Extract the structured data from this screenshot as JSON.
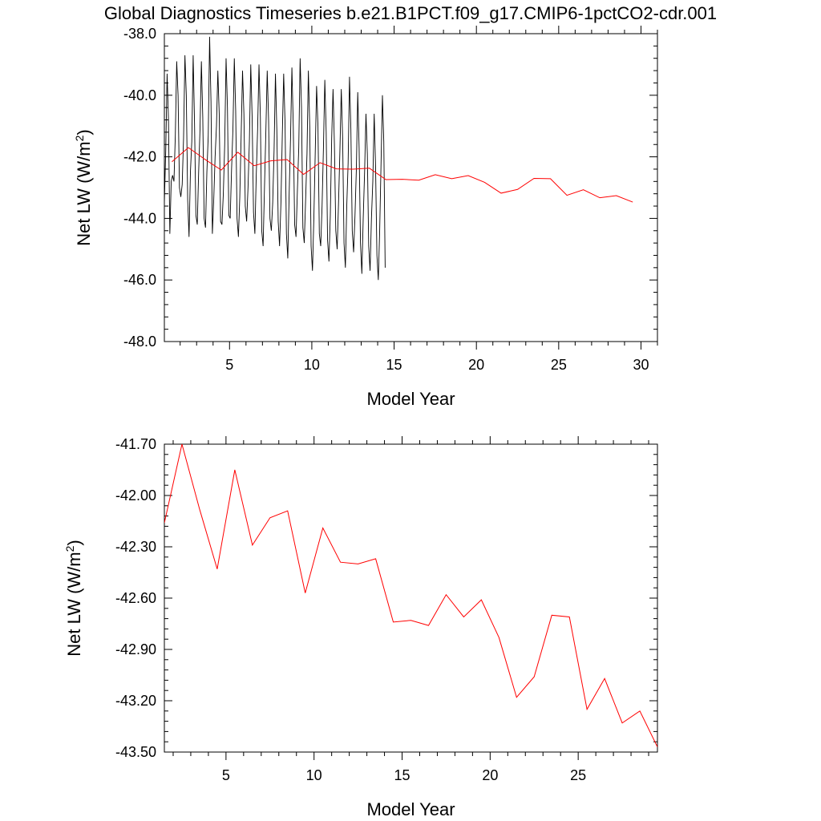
{
  "title": "Global Diagnostics Timeseries b.e21.B1PCT.f09_g17.CMIP6-1pctCO2-cdr.001",
  "colors": {
    "monthly": "#000000",
    "annual": "#ff0000",
    "axes": "#000000",
    "background": "#ffffff"
  },
  "chart_data": [
    {
      "type": "line",
      "xlabel": "Model Year",
      "ylabel": "Net LW (W/m",
      "ylabel_sup": "2",
      "ylabel_close": ")",
      "xlim": [
        1.04,
        31.0
      ],
      "ylim": [
        -48.0,
        -38.0
      ],
      "xticks": [
        "5",
        "10",
        "15",
        "20",
        "25",
        "30"
      ],
      "xtick_values": [
        5,
        10,
        15,
        20,
        25,
        30
      ],
      "yticks": [
        "-48.0",
        "-46.0",
        "-44.0",
        "-42.0",
        "-40.0",
        "-38.0"
      ],
      "ytick_values": [
        -48,
        -46,
        -44,
        -42,
        -40,
        -38
      ],
      "series": [
        {
          "name": "",
          "role": "monthly",
          "color": "#000000",
          "x_start": 1.04,
          "x_step": 0.08333,
          "values": [
            -43.5,
            -41.8,
            -39.3,
            -40.8,
            -44.5,
            -42.8,
            -42.6,
            -42.8,
            -41.3,
            -38.9,
            -40.0,
            -43.0,
            -43.3,
            -42.9,
            -41.4,
            -38.7,
            -40.0,
            -43.4,
            -44.6,
            -42.5,
            -41.5,
            -38.7,
            -40.9,
            -43.9,
            -44.2,
            -42.5,
            -41.1,
            -38.9,
            -40.7,
            -44.0,
            -44.3,
            -42.5,
            -41.3,
            -38.1,
            -40.2,
            -44.5,
            -43.4,
            -42.0,
            -41.0,
            -39.2,
            -40.6,
            -44.1,
            -44.2,
            -43.2,
            -41.6,
            -38.8,
            -40.4,
            -43.9,
            -44.0,
            -42.4,
            -41.1,
            -38.8,
            -40.5,
            -44.0,
            -44.6,
            -43.3,
            -41.3,
            -39.2,
            -40.6,
            -43.6,
            -44.1,
            -43.0,
            -41.5,
            -39.0,
            -40.7,
            -43.8,
            -44.5,
            -42.6,
            -41.1,
            -39.0,
            -40.7,
            -44.4,
            -44.9,
            -43.0,
            -41.2,
            -39.2,
            -40.8,
            -44.0,
            -44.4,
            -43.5,
            -41.8,
            -39.3,
            -41.1,
            -44.1,
            -44.9,
            -43.5,
            -41.3,
            -39.3,
            -40.9,
            -44.5,
            -45.3,
            -43.2,
            -41.4,
            -39.1,
            -41.0,
            -44.2,
            -44.6,
            -43.1,
            -41.7,
            -38.8,
            -40.4,
            -44.3,
            -44.8,
            -43.4,
            -41.9,
            -39.2,
            -41.0,
            -44.9,
            -45.7,
            -44.0,
            -41.9,
            -39.7,
            -41.0,
            -44.5,
            -44.9,
            -43.6,
            -41.7,
            -39.5,
            -41.2,
            -44.7,
            -45.4,
            -43.9,
            -41.4,
            -39.8,
            -41.6,
            -44.4,
            -45.0,
            -43.5,
            -41.8,
            -39.8,
            -41.4,
            -44.8,
            -45.6,
            -43.6,
            -42.2,
            -39.4,
            -41.1,
            -44.4,
            -45.1,
            -43.9,
            -42.4,
            -39.9,
            -41.7,
            -44.8,
            -45.8,
            -44.0,
            -42.5,
            -40.6,
            -41.9,
            -44.9,
            -45.7,
            -44.0,
            -42.8,
            -40.6,
            -42.3,
            -45.2,
            -46.0,
            -44.4,
            -42.2,
            -40.0,
            -41.5,
            -45.6
          ]
        },
        {
          "name": "",
          "role": "annual",
          "color": "#ff0000",
          "x": [
            1.5,
            2.5,
            3.5,
            4.5,
            5.5,
            6.5,
            7.5,
            8.5,
            9.5,
            10.5,
            11.5,
            12.5,
            13.5,
            14.5,
            15.5,
            16.5,
            17.5,
            18.5,
            19.5,
            20.5,
            21.5,
            22.5,
            23.5,
            24.5,
            25.5,
            26.5,
            27.5,
            28.5,
            29.5
          ],
          "values": [
            -42.16,
            -41.7,
            -42.08,
            -42.43,
            -41.85,
            -42.29,
            -42.13,
            -42.09,
            -42.57,
            -42.19,
            -42.39,
            -42.4,
            -42.37,
            -42.74,
            -42.73,
            -42.76,
            -42.58,
            -42.71,
            -42.61,
            -42.83,
            -43.18,
            -43.06,
            -42.7,
            -42.71,
            -43.25,
            -43.07,
            -43.33,
            -43.26,
            -43.47
          ]
        }
      ]
    },
    {
      "type": "line",
      "xlabel": "Model Year",
      "ylabel": "Net LW (W/m",
      "ylabel_sup": "2",
      "ylabel_close": ")",
      "xlim": [
        1.5,
        29.5
      ],
      "ylim": [
        -43.5,
        -41.7
      ],
      "xticks": [
        "5",
        "10",
        "15",
        "20",
        "25"
      ],
      "xtick_values": [
        5,
        10,
        15,
        20,
        25
      ],
      "yticks": [
        "-43.50",
        "-43.20",
        "-42.90",
        "-42.60",
        "-42.30",
        "-42.00",
        "-41.70"
      ],
      "ytick_values": [
        -43.5,
        -43.2,
        -42.9,
        -42.6,
        -42.3,
        -42.0,
        -41.7
      ],
      "series": [
        {
          "name": "",
          "role": "annual",
          "color": "#ff0000",
          "x": [
            1.5,
            2.5,
            3.5,
            4.5,
            5.5,
            6.5,
            7.5,
            8.5,
            9.5,
            10.5,
            11.5,
            12.5,
            13.5,
            14.5,
            15.5,
            16.5,
            17.5,
            18.5,
            19.5,
            20.5,
            21.5,
            22.5,
            23.5,
            24.5,
            25.5,
            26.5,
            27.5,
            28.5,
            29.5
          ],
          "values": [
            -42.16,
            -41.7,
            -42.08,
            -42.43,
            -41.85,
            -42.29,
            -42.13,
            -42.09,
            -42.57,
            -42.19,
            -42.39,
            -42.4,
            -42.37,
            -42.74,
            -42.73,
            -42.76,
            -42.58,
            -42.71,
            -42.61,
            -42.83,
            -43.18,
            -43.06,
            -42.7,
            -42.71,
            -43.25,
            -43.07,
            -43.33,
            -43.26,
            -43.47
          ]
        }
      ]
    }
  ]
}
